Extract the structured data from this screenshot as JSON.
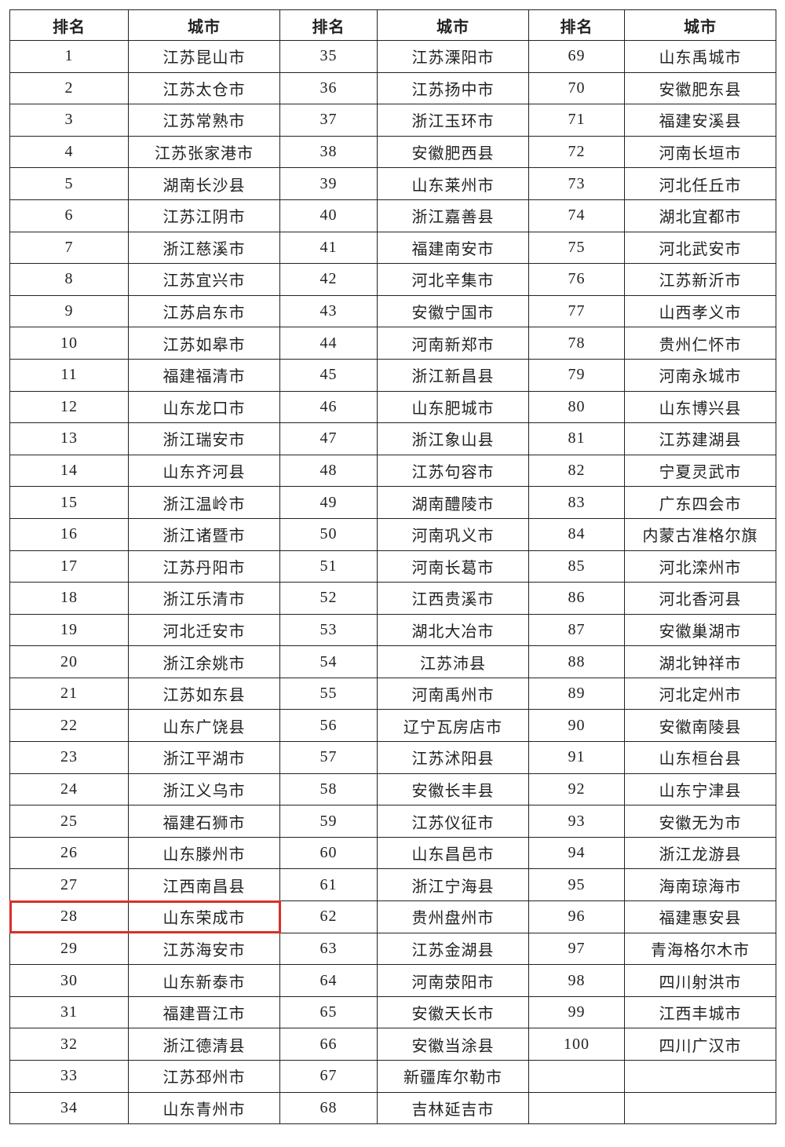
{
  "headers": [
    "排名",
    "城市",
    "排名",
    "城市",
    "排名",
    "城市"
  ],
  "highlight_color": "#d6302b",
  "highlighted_rank": "28",
  "rows": [
    [
      "1",
      "江苏昆山市",
      "35",
      "江苏溧阳市",
      "69",
      "山东禹城市"
    ],
    [
      "2",
      "江苏太仓市",
      "36",
      "江苏扬中市",
      "70",
      "安徽肥东县"
    ],
    [
      "3",
      "江苏常熟市",
      "37",
      "浙江玉环市",
      "71",
      "福建安溪县"
    ],
    [
      "4",
      "江苏张家港市",
      "38",
      "安徽肥西县",
      "72",
      "河南长垣市"
    ],
    [
      "5",
      "湖南长沙县",
      "39",
      "山东莱州市",
      "73",
      "河北任丘市"
    ],
    [
      "6",
      "江苏江阴市",
      "40",
      "浙江嘉善县",
      "74",
      "湖北宜都市"
    ],
    [
      "7",
      "浙江慈溪市",
      "41",
      "福建南安市",
      "75",
      "河北武安市"
    ],
    [
      "8",
      "江苏宜兴市",
      "42",
      "河北辛集市",
      "76",
      "江苏新沂市"
    ],
    [
      "9",
      "江苏启东市",
      "43",
      "安徽宁国市",
      "77",
      "山西孝义市"
    ],
    [
      "10",
      "江苏如皋市",
      "44",
      "河南新郑市",
      "78",
      "贵州仁怀市"
    ],
    [
      "11",
      "福建福清市",
      "45",
      "浙江新昌县",
      "79",
      "河南永城市"
    ],
    [
      "12",
      "山东龙口市",
      "46",
      "山东肥城市",
      "80",
      "山东博兴县"
    ],
    [
      "13",
      "浙江瑞安市",
      "47",
      "浙江象山县",
      "81",
      "江苏建湖县"
    ],
    [
      "14",
      "山东齐河县",
      "48",
      "江苏句容市",
      "82",
      "宁夏灵武市"
    ],
    [
      "15",
      "浙江温岭市",
      "49",
      "湖南醴陵市",
      "83",
      "广东四会市"
    ],
    [
      "16",
      "浙江诸暨市",
      "50",
      "河南巩义市",
      "84",
      "内蒙古准格尔旗"
    ],
    [
      "17",
      "江苏丹阳市",
      "51",
      "河南长葛市",
      "85",
      "河北滦州市"
    ],
    [
      "18",
      "浙江乐清市",
      "52",
      "江西贵溪市",
      "86",
      "河北香河县"
    ],
    [
      "19",
      "河北迁安市",
      "53",
      "湖北大冶市",
      "87",
      "安徽巢湖市"
    ],
    [
      "20",
      "浙江余姚市",
      "54",
      "江苏沛县",
      "88",
      "湖北钟祥市"
    ],
    [
      "21",
      "江苏如东县",
      "55",
      "河南禹州市",
      "89",
      "河北定州市"
    ],
    [
      "22",
      "山东广饶县",
      "56",
      "辽宁瓦房店市",
      "90",
      "安徽南陵县"
    ],
    [
      "23",
      "浙江平湖市",
      "57",
      "江苏沭阳县",
      "91",
      "山东桓台县"
    ],
    [
      "24",
      "浙江义乌市",
      "58",
      "安徽长丰县",
      "92",
      "山东宁津县"
    ],
    [
      "25",
      "福建石狮市",
      "59",
      "江苏仪征市",
      "93",
      "安徽无为市"
    ],
    [
      "26",
      "山东滕州市",
      "60",
      "山东昌邑市",
      "94",
      "浙江龙游县"
    ],
    [
      "27",
      "江西南昌县",
      "61",
      "浙江宁海县",
      "95",
      "海南琼海市"
    ],
    [
      "28",
      "山东荣成市",
      "62",
      "贵州盘州市",
      "96",
      "福建惠安县"
    ],
    [
      "29",
      "江苏海安市",
      "63",
      "江苏金湖县",
      "97",
      "青海格尔木市"
    ],
    [
      "30",
      "山东新泰市",
      "64",
      "河南荥阳市",
      "98",
      "四川射洪市"
    ],
    [
      "31",
      "福建晋江市",
      "65",
      "安徽天长市",
      "99",
      "江西丰城市"
    ],
    [
      "32",
      "浙江德清县",
      "66",
      "安徽当涂县",
      "100",
      "四川广汉市"
    ],
    [
      "33",
      "江苏邳州市",
      "67",
      "新疆库尔勒市",
      "",
      ""
    ],
    [
      "34",
      "山东青州市",
      "68",
      "吉林延吉市",
      "",
      ""
    ]
  ]
}
